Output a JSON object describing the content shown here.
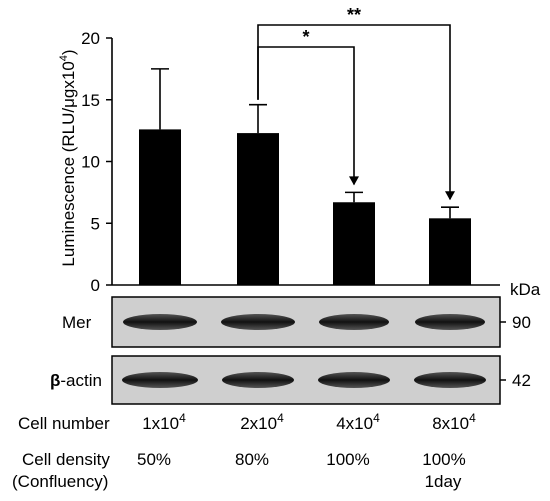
{
  "chart_data": {
    "type": "bar",
    "title": "",
    "ylabel": "Luminescence (RLU/μgx10",
    "ylabel_superscript": "4",
    "ylabel_suffix": ")",
    "ylim": [
      0,
      20
    ],
    "yticks": [
      "0",
      "5",
      "10",
      "15",
      "20"
    ],
    "categories": [
      "1x10^4",
      "2x10^4",
      "4x10^4",
      "8x10^4"
    ],
    "values": [
      12.6,
      12.3,
      6.7,
      5.4
    ],
    "errors": [
      4.9,
      2.3,
      0.8,
      0.9
    ],
    "significance": [
      {
        "from": 1,
        "to": 2,
        "label": "*"
      },
      {
        "from": 1,
        "to": 3,
        "label": "**"
      }
    ]
  },
  "blots": {
    "unit": "kDa",
    "rows": [
      {
        "label": "Mer",
        "mw": "90"
      },
      {
        "label_prefix": "β",
        "label": "-actin",
        "mw": "42"
      }
    ]
  },
  "table": {
    "cell_number_label": "Cell number",
    "cell_numbers": [
      {
        "base": "1x10",
        "exp": "4"
      },
      {
        "base": "2x10",
        "exp": "4"
      },
      {
        "base": "4x10",
        "exp": "4"
      },
      {
        "base": "8x10",
        "exp": "4"
      }
    ],
    "cell_density_label": "Cell density",
    "confluency_label": "(Confluency)",
    "densities": [
      "50%",
      "80%",
      "100%",
      "100%"
    ],
    "extra_note": "1day"
  }
}
